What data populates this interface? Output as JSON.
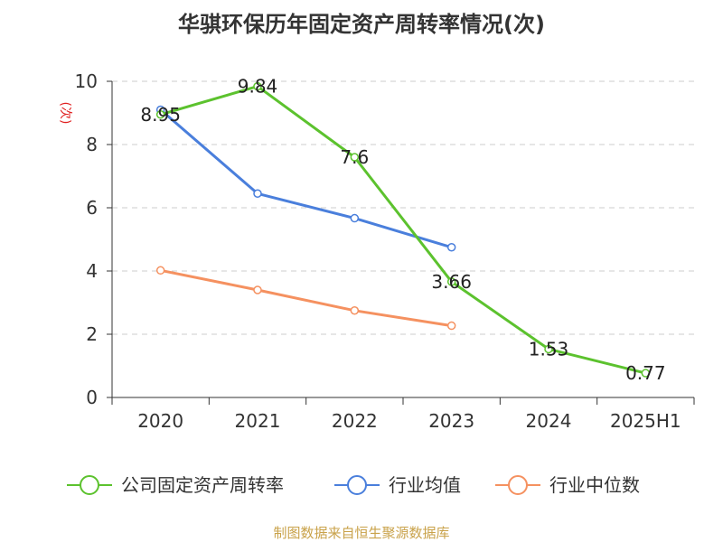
{
  "chart_data": {
    "type": "line",
    "title": "华骐环保历年固定资产周转率情况(次)",
    "ylabel": "(次)",
    "xlabel": "",
    "categories": [
      "2020",
      "2021",
      "2022",
      "2023",
      "2024",
      "2025H1"
    ],
    "ylim": [
      0,
      10
    ],
    "yticks": [
      0,
      2,
      4,
      6,
      8,
      10
    ],
    "grid": true,
    "legend_position": "bottom",
    "series": [
      {
        "name": "公司固定资产周转率",
        "color": "#5cc22e",
        "values": [
          8.95,
          9.84,
          7.6,
          3.66,
          1.53,
          0.77
        ],
        "labels": [
          "8.95",
          "9.84",
          "7.6",
          "3.66",
          "1.53",
          "0.77"
        ]
      },
      {
        "name": "行业均值",
        "color": "#4a7fdc",
        "values": [
          9.1,
          6.45,
          5.67,
          4.75,
          null,
          null
        ]
      },
      {
        "name": "行业中位数",
        "color": "#f59160",
        "values": [
          4.02,
          3.4,
          2.75,
          2.27,
          null,
          null
        ]
      }
    ]
  },
  "source_text": "制图数据来自恒生聚源数据库"
}
